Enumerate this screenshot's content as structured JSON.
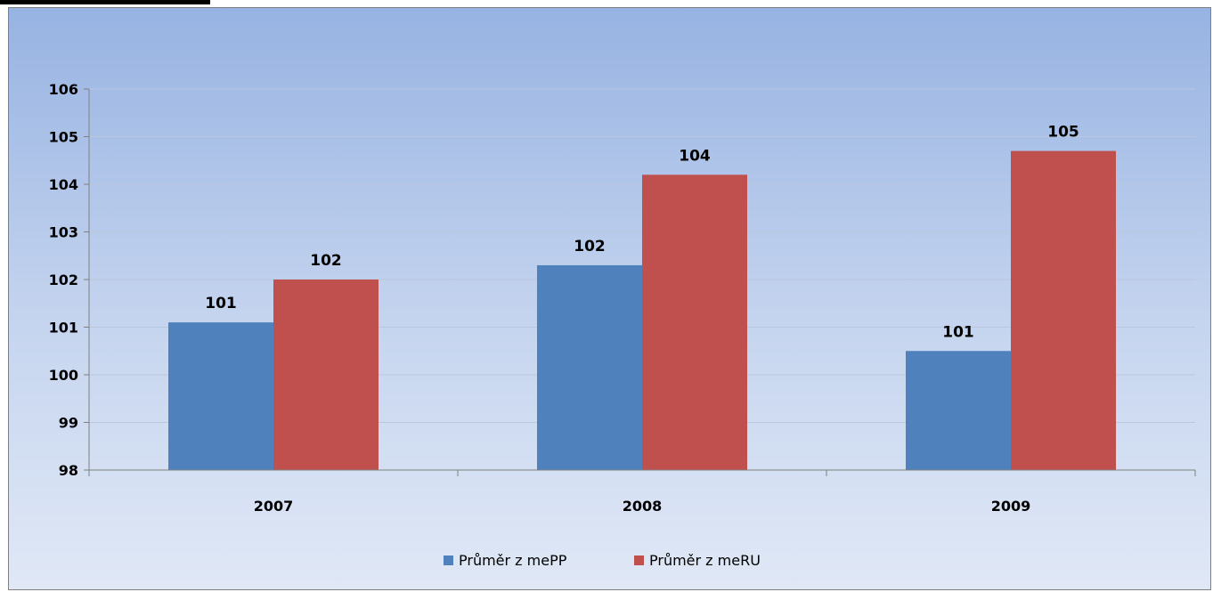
{
  "chart_data": {
    "type": "bar",
    "categories": [
      "2007",
      "2008",
      "2009"
    ],
    "series": [
      {
        "name": "Průměr z mePP",
        "color": "#4f81bd",
        "values": [
          101.1,
          102.3,
          100.5
        ],
        "labels": [
          "101",
          "102",
          "101"
        ]
      },
      {
        "name": "Průměr z meRU",
        "color": "#c0504d",
        "values": [
          102.0,
          104.2,
          104.7
        ],
        "labels": [
          "102",
          "104",
          "105"
        ]
      }
    ],
    "ylim": [
      98,
      106
    ],
    "yticks": [
      "98",
      "99",
      "100",
      "101",
      "102",
      "103",
      "104",
      "105",
      "106"
    ],
    "grid": true,
    "legend_position": "bottom"
  }
}
